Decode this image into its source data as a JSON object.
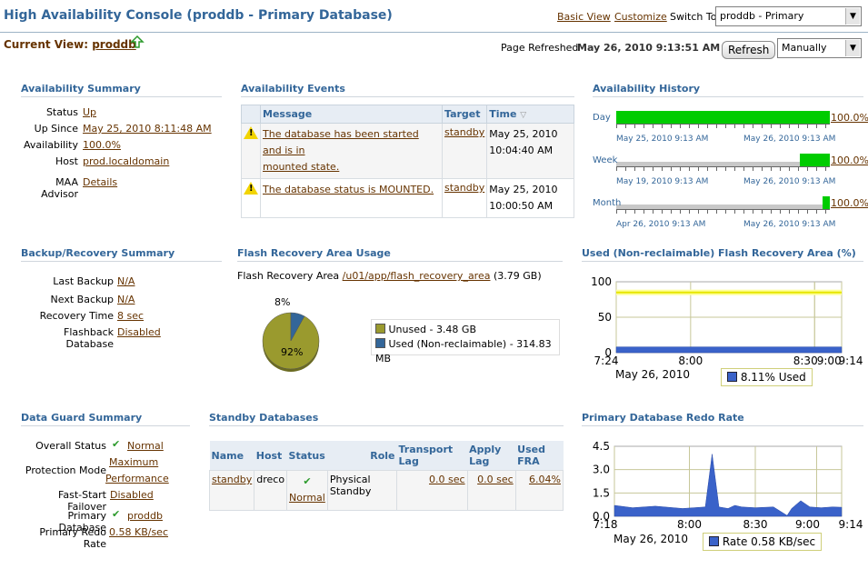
{
  "header": {
    "title": "High Availability Console (proddb - Primary Database)",
    "basic_view": "Basic View",
    "customize": "Customize",
    "switch_to_label": "Switch To",
    "switch_to_value": "proddb - Primary",
    "current_view_label": "Current View:",
    "current_view_value": "proddb",
    "page_refreshed_label": "Page Refreshed",
    "page_refreshed_value": "May 26, 2010 9:13:51 AM CDT",
    "refresh_button": "Refresh",
    "refresh_mode": "Manually"
  },
  "availability_summary": {
    "title": "Availability Summary",
    "rows": [
      {
        "label": "Status",
        "value": "Up"
      },
      {
        "label": "Up Since",
        "value": "May 25, 2010 8:11:48 AM"
      },
      {
        "label": "Availability",
        "value": "100.0%"
      },
      {
        "label": "Host",
        "value": "prod.localdomain"
      },
      {
        "label": "MAA Advisor",
        "value": "Details"
      }
    ]
  },
  "availability_events": {
    "title": "Availability Events",
    "columns": [
      "Message",
      "Target",
      "Time"
    ],
    "rows": [
      {
        "message_line1": "The database has been started and is in",
        "message_line2": "mounted state.",
        "target": "standby",
        "time_line1": "May 25, 2010",
        "time_line2": "10:04:40 AM"
      },
      {
        "message_line1": "The database status is MOUNTED.",
        "message_line2": "",
        "target": "standby",
        "time_line1": "May 25, 2010",
        "time_line2": "10:00:50 AM"
      }
    ]
  },
  "availability_history": {
    "title": "Availability History",
    "rows": [
      {
        "label": "Day",
        "percent": "100.0%",
        "start": "May 25, 2010 9:13 AM",
        "end": "May 26, 2010 9:13 AM",
        "up_fraction": 1.0
      },
      {
        "label": "Week",
        "percent": "100.0%",
        "start": "May 19, 2010 9:13 AM",
        "end": "May 26, 2010 9:13 AM",
        "up_fraction": 0.14
      },
      {
        "label": "Month",
        "percent": "100.0%",
        "start": "Apr 26, 2010 9:13 AM",
        "end": "May 26, 2010 9:13 AM",
        "up_fraction": 0.033
      }
    ]
  },
  "backup_recovery": {
    "title": "Backup/Recovery Summary",
    "rows": [
      {
        "label": "Last Backup",
        "value": "N/A"
      },
      {
        "label": "Next Backup",
        "value": "N/A"
      },
      {
        "label": "Recovery Time",
        "value": "8 sec"
      },
      {
        "label": "Flashback Database",
        "value": "Disabled"
      }
    ]
  },
  "flash_recovery_usage": {
    "title": "Flash Recovery Area Usage",
    "area_label": "Flash Recovery Area",
    "area_path": "/u01/app/flash_recovery_area",
    "area_size": "(3.79 GB)",
    "slice_used_label": "8%",
    "slice_unused_label": "92%",
    "legend_unused": "Unused - 3.48 GB",
    "legend_used": "Used (Non-reclaimable) - 314.83 MB",
    "colors": {
      "unused": "#9a9a2e",
      "used": "#336699"
    }
  },
  "chart_data": [
    {
      "type": "pie",
      "title": "",
      "labels": [
        "Unused",
        "Used (Non-reclaimable)"
      ],
      "values": [
        92,
        8
      ]
    },
    {
      "type": "area",
      "title": "Used (Non-reclaimable) Flash Recovery Area (%)",
      "x_ticks": [
        "7:24",
        "8:00",
        "8:30",
        "9:00",
        "9:14"
      ],
      "x_sub": "May 26, 2010",
      "y_ticks": [
        "100",
        "50",
        "0"
      ],
      "ylim": [
        0,
        100
      ],
      "threshold": 85,
      "x": [
        0,
        1
      ],
      "series": [
        {
          "name": "Used",
          "legend": "8.11% Used",
          "values": [
            8.11,
            8.11
          ],
          "color": "#3a62c9"
        }
      ]
    },
    {
      "type": "area",
      "title": "Primary Database Redo Rate",
      "x_ticks": [
        "7:18",
        "8:00",
        "8:30",
        "9:00",
        "9:14"
      ],
      "x_sub": "May 26, 2010",
      "y_ticks": [
        "4.5",
        "3.0",
        "1.5",
        "0.0"
      ],
      "ylim": [
        0,
        4.5
      ],
      "x": [
        0,
        0.08,
        0.18,
        0.3,
        0.4,
        0.43,
        0.46,
        0.5,
        0.53,
        0.56,
        0.62,
        0.7,
        0.76,
        0.78,
        0.82,
        0.86,
        0.91,
        0.96,
        1.0
      ],
      "series": [
        {
          "name": "Rate",
          "legend": "Rate 0.58 KB/sec",
          "values": [
            0.7,
            0.55,
            0.65,
            0.5,
            0.6,
            4.0,
            0.6,
            0.5,
            0.7,
            0.6,
            0.55,
            0.6,
            0.05,
            0.5,
            1.0,
            0.6,
            0.55,
            0.6,
            0.58
          ],
          "color": "#3a62c9"
        }
      ]
    }
  ],
  "used_fra_chart": {
    "title": "Used (Non-reclaimable) Flash Recovery Area (%)",
    "x_sub": "May 26, 2010",
    "legend": "8.11% Used"
  },
  "redo_chart": {
    "title": "Primary Database Redo Rate",
    "x_sub": "May 26, 2010",
    "legend": "Rate 0.58 KB/sec"
  },
  "data_guard": {
    "title": "Data Guard Summary",
    "overall_status_label": "Overall Status",
    "overall_status_value": "Normal",
    "protection_mode_label": "Protection Mode",
    "protection_mode_value_1": "Maximum",
    "protection_mode_value_2": "Performance",
    "fsfo_label": "Fast-Start Failover",
    "fsfo_value": "Disabled",
    "primary_db_label": "Primary Database",
    "primary_db_value": "proddb",
    "primary_redo_label": "Primary Redo Rate",
    "primary_redo_value": "0.58 KB/sec"
  },
  "standby_databases": {
    "title": "Standby Databases",
    "columns": [
      "Name",
      "Host",
      "Status",
      "Role",
      "Transport Lag",
      "Apply Lag",
      "Used FRA"
    ],
    "row": {
      "name": "standby",
      "host": "dreco",
      "status": "Normal",
      "role": "Physical Standby",
      "transport_lag": "0.0 sec",
      "apply_lag": "0.0 sec",
      "used_fra": "6.04%"
    }
  }
}
